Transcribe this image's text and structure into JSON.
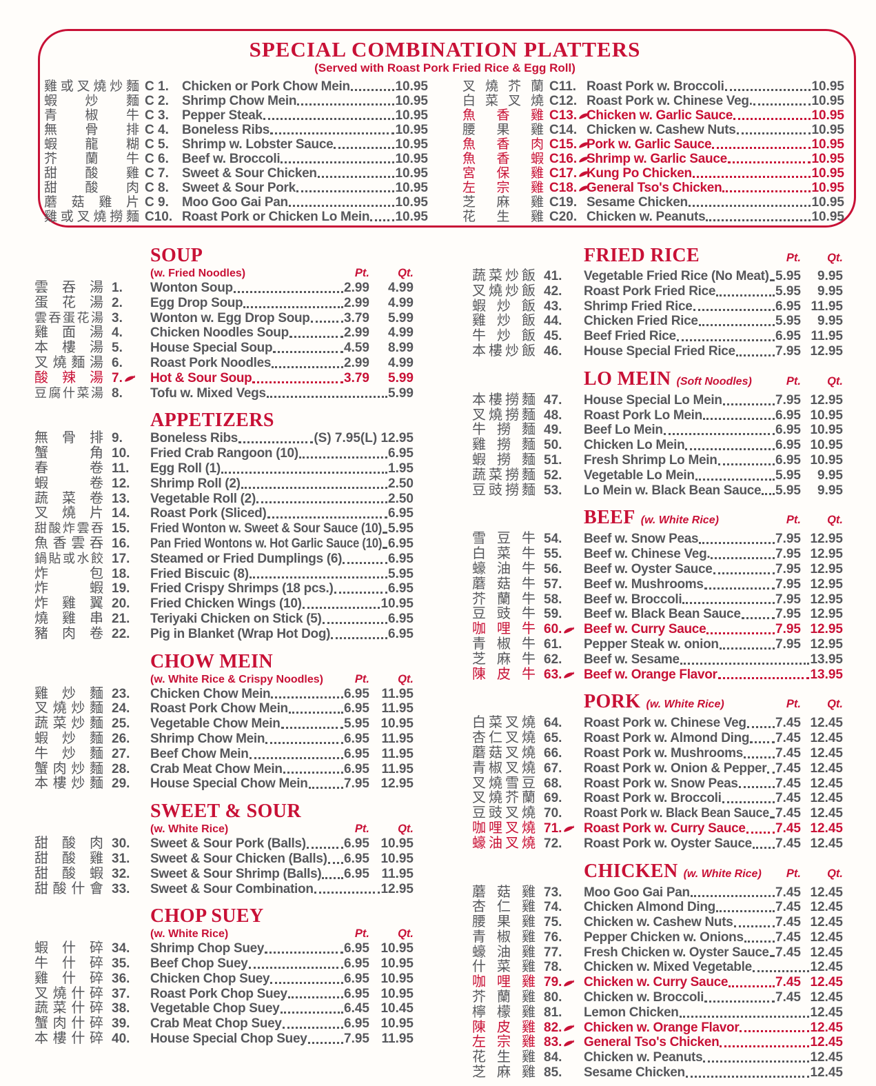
{
  "colors": {
    "accent": "#c81136",
    "text": "#56575b",
    "background": "#fffdfa"
  },
  "price_headers": {
    "pt": "Pt.",
    "qt": "Qt."
  },
  "platters": {
    "title": "SPECIAL COMBINATION PLATTERS",
    "subtitle": "(Served with Roast Pork Fried Rice & Egg Roll)",
    "left": [
      {
        "zh": "雞或叉燒炒麵",
        "num": "C 1.",
        "name": "Chicken or Pork Chow Mein",
        "qt": "10.95"
      },
      {
        "zh": "蝦炒麵",
        "num": "C 2.",
        "name": "Shrimp Chow Mein",
        "qt": "10.95"
      },
      {
        "zh": "青椒牛",
        "num": "C 3.",
        "name": "Pepper Steak",
        "qt": "10.95"
      },
      {
        "zh": "無骨排",
        "num": "C 4.",
        "name": "Boneless Ribs",
        "qt": "10.95"
      },
      {
        "zh": "蝦龍糊",
        "num": "C 5.",
        "name": "Shrimp w. Lobster Sauce",
        "qt": "10.95"
      },
      {
        "zh": "芥蘭牛",
        "num": "C 6.",
        "name": "Beef w. Broccoli",
        "qt": "10.95"
      },
      {
        "zh": "甜酸雞",
        "num": "C 7.",
        "name": "Sweet & Sour Chicken",
        "qt": "10.95"
      },
      {
        "zh": "甜酸肉",
        "num": "C 8.",
        "name": "Sweet & Sour Pork",
        "qt": "10.95"
      },
      {
        "zh": "蘑菇雞片",
        "num": "C 9.",
        "name": "Moo Goo Gai Pan",
        "qt": "10.95"
      },
      {
        "zh": "雞或叉燒撈麵",
        "num": "C10.",
        "name": "Roast Pork or Chicken Lo Mein",
        "qt": "10.95"
      }
    ],
    "right": [
      {
        "zh": "叉燒芥蘭",
        "num": "C11.",
        "name": "Roast Pork w. Broccoli",
        "qt": "10.95"
      },
      {
        "zh": "白菜叉燒",
        "num": "C12.",
        "name": "Roast Pork w. Chinese Veg.",
        "qt": "10.95"
      },
      {
        "zh": "魚香雞",
        "num": "C13.",
        "name": "Chicken w. Garlic Sauce",
        "qt": "10.95",
        "red": true,
        "spicy": true
      },
      {
        "zh": "腰果雞",
        "num": "C14.",
        "name": "Chicken w. Cashew Nuts",
        "qt": "10.95"
      },
      {
        "zh": "魚香肉",
        "num": "C15.",
        "name": "Pork w. Garlic Sauce",
        "qt": "10.95",
        "red": true,
        "spicy": true
      },
      {
        "zh": "魚香蝦",
        "num": "C16.",
        "name": "Shrimp w. Garlic Sauce",
        "qt": "10.95",
        "red": true,
        "spicy": true
      },
      {
        "zh": "宮保雞",
        "num": "C17.",
        "name": "Kung Po Chicken",
        "qt": "10.95",
        "red": true,
        "spicy": true
      },
      {
        "zh": "左宗雞",
        "num": "C18.",
        "name": "General Tso's Chicken",
        "qt": "10.95",
        "red": true,
        "spicy": true
      },
      {
        "zh": "芝麻雞",
        "num": "C19.",
        "name": "Sesame Chicken",
        "qt": "10.95"
      },
      {
        "zh": "花生雞",
        "num": "C20.",
        "name": "Chicken w. Peanuts",
        "qt": "10.95"
      }
    ]
  },
  "left_sections": [
    {
      "title": "SOUP",
      "subtitle": "(w. Fried Noodles)",
      "show_ptqt": true,
      "items": [
        {
          "zh": "雲吞湯",
          "num": "1.",
          "name": "Wonton Soup",
          "pt": "2.99",
          "qt": "4.99"
        },
        {
          "zh": "蛋花湯",
          "num": "2.",
          "name": "Egg Drop Soup",
          "pt": "2.99",
          "qt": "4.99"
        },
        {
          "zh": "雲吞蛋花湯",
          "num": "3.",
          "name": "Wonton w. Egg Drop Soup",
          "pt": "3.79",
          "qt": "5.99"
        },
        {
          "zh": "雞面湯",
          "num": "4.",
          "name": "Chicken Noodles Soup",
          "pt": "2.99",
          "qt": "4.99"
        },
        {
          "zh": "本樓湯",
          "num": "5.",
          "name": "House Special Soup",
          "pt": "4.59",
          "qt": "8.99"
        },
        {
          "zh": "叉燒麵湯",
          "num": "6.",
          "name": "Roast Pork Noodles",
          "pt": "2.99",
          "qt": "4.99"
        },
        {
          "zh": "酸辣湯",
          "num": "7.",
          "name": "Hot & Sour Soup",
          "pt": "3.79",
          "qt": "5.99",
          "red": true,
          "spicy": true
        },
        {
          "zh": "豆腐什菜湯",
          "num": "8.",
          "name": "Tofu w. Mixed Vegs",
          "qt": "5.99"
        }
      ]
    },
    {
      "title": "APPETIZERS",
      "items": [
        {
          "zh": "無骨排",
          "num": "9.",
          "name": "Boneless Ribs",
          "pt": "(S) 7.95",
          "qt": "(L) 12.95"
        },
        {
          "zh": "蟹角",
          "num": "10.",
          "name": "Fried Crab Rangoon (10)",
          "qt": "6.95"
        },
        {
          "zh": "春卷",
          "num": "11.",
          "name": "Egg Roll (1)",
          "qt": "1.95"
        },
        {
          "zh": "蝦卷",
          "num": "12.",
          "name": "Shrimp Roll (2)",
          "qt": "2.50"
        },
        {
          "zh": "蔬菜卷",
          "num": "13.",
          "name": "Vegetable Roll (2)",
          "qt": "2.50"
        },
        {
          "zh": "叉燒片",
          "num": "14.",
          "name": "Roast Pork (Sliced)",
          "qt": "6.95"
        },
        {
          "zh": "甜酸炸雲吞",
          "num": "15.",
          "name": "Fried Wonton w. Sweet & Sour Sauce (10)",
          "qt": "5.95"
        },
        {
          "zh": "魚香雲吞",
          "num": "16.",
          "name": "Pan Fried Wontons w. Hot Garlic Sauce (10)",
          "qt": "6.95"
        },
        {
          "zh": "鍋貼或水餃",
          "num": "17.",
          "name": "Steamed or Fried Dumplings (6)",
          "qt": "6.95"
        },
        {
          "zh": "炸包",
          "num": "18.",
          "name": "Fried Biscuic (8)",
          "qt": "5.95"
        },
        {
          "zh": "炸蝦",
          "num": "19.",
          "name": "Fried Crispy Shrimps (18 pcs.)",
          "qt": "6.95"
        },
        {
          "zh": "炸雞翼",
          "num": "20.",
          "name": "Fried Chicken Wings (10)",
          "qt": "10.95"
        },
        {
          "zh": "燒雞串",
          "num": "21.",
          "name": "Teriyaki Chicken on Stick (5)",
          "qt": "6.95"
        },
        {
          "zh": "豬肉卷",
          "num": "22.",
          "name": "Pig in Blanket (Wrap Hot Dog)",
          "qt": "6.95"
        }
      ]
    },
    {
      "title": "CHOW MEIN",
      "subtitle": "(w. White Rice & Crispy Noodles)",
      "show_ptqt": true,
      "items": [
        {
          "zh": "雞炒麵",
          "num": "23.",
          "name": "Chicken Chow Mein",
          "pt": "6.95",
          "qt": "11.95"
        },
        {
          "zh": "叉燒炒麵",
          "num": "24.",
          "name": "Roast Pork Chow Mein",
          "pt": "6.95",
          "qt": "11.95"
        },
        {
          "zh": "蔬菜炒麵",
          "num": "25.",
          "name": "Vegetable Chow Mein",
          "pt": "5.95",
          "qt": "10.95"
        },
        {
          "zh": "蝦炒麵",
          "num": "26.",
          "name": "Shrimp Chow Mein",
          "pt": "6.95",
          "qt": "11.95"
        },
        {
          "zh": "牛炒麵",
          "num": "27.",
          "name": "Beef Chow Mein",
          "pt": "6.95",
          "qt": "11.95"
        },
        {
          "zh": "蟹肉炒麵",
          "num": "28.",
          "name": "Crab Meat Chow Mein",
          "pt": "6.95",
          "qt": "11.95"
        },
        {
          "zh": "本樓炒麵",
          "num": "29.",
          "name": "House Special Chow Mein",
          "pt": "7.95",
          "qt": "12.95"
        }
      ]
    },
    {
      "title": "SWEET & SOUR",
      "subtitle": "(w. White Rice)",
      "show_ptqt": true,
      "items": [
        {
          "zh": "甜酸肉",
          "num": "30.",
          "name": "Sweet & Sour Pork (Balls)",
          "pt": "6.95",
          "qt": "10.95"
        },
        {
          "zh": "甜酸雞",
          "num": "31.",
          "name": "Sweet & Sour Chicken (Balls)",
          "pt": "6.95",
          "qt": "10.95"
        },
        {
          "zh": "甜酸蝦",
          "num": "32.",
          "name": "Sweet & Sour Shrimp (Balls)",
          "pt": "6.95",
          "qt": "11.95"
        },
        {
          "zh": "甜酸什會",
          "num": "33.",
          "name": "Sweet & Sour Combination",
          "qt": "12.95"
        }
      ]
    },
    {
      "title": "CHOP SUEY",
      "subtitle": "(w. White Rice)",
      "show_ptqt": true,
      "items": [
        {
          "zh": "蝦什碎",
          "num": "34.",
          "name": "Shrimp Chop Suey",
          "pt": "6.95",
          "qt": "10.95"
        },
        {
          "zh": "牛什碎",
          "num": "35.",
          "name": "Beef Chop Suey",
          "pt": "6.95",
          "qt": "10.95"
        },
        {
          "zh": "雞什碎",
          "num": "36.",
          "name": "Chicken Chop Suey",
          "pt": "6.95",
          "qt": "10.95"
        },
        {
          "zh": "叉燒什碎",
          "num": "37.",
          "name": "Roast Pork Chop Suey",
          "pt": "6.95",
          "qt": "10.95"
        },
        {
          "zh": "蔬菜什碎",
          "num": "38.",
          "name": "Vegetable Chop Suey",
          "pt": "6.45",
          "qt": "10.45"
        },
        {
          "zh": "蟹肉什碎",
          "num": "39.",
          "name": "Crab Meat Chop Suey",
          "pt": "6.95",
          "qt": "10.95"
        },
        {
          "zh": "本樓什碎",
          "num": "40.",
          "name": "House Special Chop Suey",
          "pt": "7.95",
          "qt": "11.95"
        }
      ]
    }
  ],
  "right_sections": [
    {
      "title": "FRIED RICE",
      "subtitle": "",
      "show_ptqt": true,
      "items": [
        {
          "zh": "蔬菜炒飯",
          "num": "41.",
          "name": "Vegetable Fried Rice (No Meat)",
          "pt": "5.95",
          "qt": "9.95"
        },
        {
          "zh": "叉燒炒飯",
          "num": "42.",
          "name": "Roast Pork Fried Rice",
          "pt": "5.95",
          "qt": "9.95"
        },
        {
          "zh": "蝦炒飯",
          "num": "43.",
          "name": "Shrimp Fried Rice",
          "pt": "6.95",
          "qt": "11.95"
        },
        {
          "zh": "雞炒飯",
          "num": "44.",
          "name": "Chicken Fried Rice",
          "pt": "5.95",
          "qt": "9.95"
        },
        {
          "zh": "牛炒飯",
          "num": "45.",
          "name": "Beef Fried Rice",
          "pt": "6.95",
          "qt": "11.95"
        },
        {
          "zh": "本樓炒飯",
          "num": "46.",
          "name": "House Special Fried Rice",
          "pt": "7.95",
          "qt": "12.95"
        }
      ]
    },
    {
      "title": "LO MEIN",
      "subtitle": "(Soft Noodles)",
      "show_ptqt": true,
      "items": [
        {
          "zh": "本樓撈麵",
          "num": "47.",
          "name": "House Special Lo Mein",
          "pt": "7.95",
          "qt": "12.95"
        },
        {
          "zh": "叉燒撈麵",
          "num": "48.",
          "name": "Roast Pork Lo Mein",
          "pt": "6.95",
          "qt": "10.95"
        },
        {
          "zh": "牛撈麵",
          "num": "49.",
          "name": "Beef Lo Mein",
          "pt": "6.95",
          "qt": "10.95"
        },
        {
          "zh": "雞撈麵",
          "num": "50.",
          "name": "Chicken Lo Mein",
          "pt": "6.95",
          "qt": "10.95"
        },
        {
          "zh": "蝦撈麵",
          "num": "51.",
          "name": "Fresh Shrimp Lo Mein",
          "pt": "6.95",
          "qt": "10.95"
        },
        {
          "zh": "蔬菜撈麵",
          "num": "52.",
          "name": "Vegetable Lo Mein",
          "pt": "5.95",
          "qt": "9.95"
        },
        {
          "zh": "豆豉撈麵",
          "num": "53.",
          "name": "Lo Mein w. Black Bean Sauce",
          "pt": "5.95",
          "qt": "9.95"
        }
      ]
    },
    {
      "title": "BEEF",
      "subtitle": "(w. White Rice)",
      "show_ptqt": true,
      "items": [
        {
          "zh": "雪豆牛",
          "num": "54.",
          "name": "Beef w. Snow Peas",
          "pt": "7.95",
          "qt": "12.95"
        },
        {
          "zh": "白菜牛",
          "num": "55.",
          "name": "Beef w. Chinese Veg.",
          "pt": "7.95",
          "qt": "12.95"
        },
        {
          "zh": "蠔油牛",
          "num": "56.",
          "name": "Beef w. Oyster Sauce",
          "pt": "7.95",
          "qt": "12.95"
        },
        {
          "zh": "蘑菇牛",
          "num": "57.",
          "name": "Beef w. Mushrooms",
          "pt": "7.95",
          "qt": "12.95"
        },
        {
          "zh": "芥蘭牛",
          "num": "58.",
          "name": "Beef w. Broccoli",
          "pt": "7.95",
          "qt": "12.95"
        },
        {
          "zh": "豆豉牛",
          "num": "59.",
          "name": "Beef w. Black Bean Sauce",
          "pt": "7.95",
          "qt": "12.95"
        },
        {
          "zh": "咖哩牛",
          "num": "60.",
          "name": "Beef w. Curry Sauce",
          "pt": "7.95",
          "qt": "12.95",
          "red": true,
          "spicy": true
        },
        {
          "zh": "青椒牛",
          "num": "61.",
          "name": "Pepper Steak w. onion",
          "pt": "7.95",
          "qt": "12.95"
        },
        {
          "zh": "芝麻牛",
          "num": "62.",
          "name": "Beef w. Sesame",
          "qt": "13.95"
        },
        {
          "zh": "陳皮牛",
          "num": "63.",
          "name": "Beef w. Orange Flavor",
          "qt": "13.95",
          "red": true,
          "spicy": true
        }
      ]
    },
    {
      "title": "PORK",
      "subtitle": "(w. White Rice)",
      "show_ptqt": true,
      "items": [
        {
          "zh": "白菜叉燒",
          "num": "64.",
          "name": "Roast Pork w. Chinese Veg",
          "pt": "7.45",
          "qt": "12.45"
        },
        {
          "zh": "杏仁叉燒",
          "num": "65.",
          "name": "Roast Pork w. Almond Ding",
          "pt": "7.45",
          "qt": "12.45"
        },
        {
          "zh": "蘑菇叉燒",
          "num": "66.",
          "name": "Roast Pork w. Mushrooms",
          "pt": "7.45",
          "qt": "12.45"
        },
        {
          "zh": "青椒叉燒",
          "num": "67.",
          "name": "Roast Pork w. Onion & Pepper",
          "pt": "7.45",
          "qt": "12.45"
        },
        {
          "zh": "叉燒雪豆",
          "num": "68.",
          "name": "Roast Pork w. Snow Peas",
          "pt": "7.45",
          "qt": "12.45"
        },
        {
          "zh": "叉燒芥蘭",
          "num": "69.",
          "name": "Roast Pork w. Broccoli",
          "pt": "7.45",
          "qt": "12.45"
        },
        {
          "zh": "豆豉叉燒",
          "num": "70.",
          "name": "Roast Pork w. Black Bean Sauce",
          "pt": "7.45",
          "qt": "12.45"
        },
        {
          "zh": "咖哩叉燒",
          "num": "71.",
          "name": "Roast Pork w. Curry Sauce",
          "pt": "7.45",
          "qt": "12.45",
          "red": true,
          "spicy": true
        },
        {
          "zh": "蠔油叉燒",
          "num": "72.",
          "name": "Roast Pork w. Oyster Sauce",
          "pt": "7.45",
          "qt": "12.45",
          "zh_red": true
        }
      ]
    },
    {
      "title": "CHICKEN",
      "subtitle": "(w. White Rice)",
      "show_ptqt": true,
      "items": [
        {
          "zh": "蘑菇雞",
          "num": "73.",
          "name": "Moo Goo Gai Pan",
          "pt": "7.45",
          "qt": "12.45"
        },
        {
          "zh": "杏仁雞",
          "num": "74.",
          "name": "Chicken Almond Ding",
          "pt": "7.45",
          "qt": "12.45"
        },
        {
          "zh": "腰果雞",
          "num": "75.",
          "name": "Chicken w. Cashew Nuts",
          "pt": "7.45",
          "qt": "12.45"
        },
        {
          "zh": "青椒雞",
          "num": "76.",
          "name": "Pepper Chicken w. Onions",
          "pt": "7.45",
          "qt": "12.45"
        },
        {
          "zh": "蠔油雞",
          "num": "77.",
          "name": "Fresh Chicken w. Oyster Sauce",
          "pt": "7.45",
          "qt": "12.45"
        },
        {
          "zh": "什菜雞",
          "num": "78.",
          "name": "Chicken w. Mixed Vegetable",
          "qt": "12.45"
        },
        {
          "zh": "咖哩雞",
          "num": "79.",
          "name": "Chicken w. Curry Sauce",
          "pt": "7.45",
          "qt": "12.45",
          "red": true,
          "spicy": true
        },
        {
          "zh": "芥蘭雞",
          "num": "80.",
          "name": "Chicken w. Broccoli",
          "pt": "7.45",
          "qt": "12.45"
        },
        {
          "zh": "檸檬雞",
          "num": "81.",
          "name": "Lemon Chicken",
          "qt": "12.45"
        },
        {
          "zh": "陳皮雞",
          "num": "82.",
          "name": "Chicken w. Orange Flavor",
          "qt": "12.45",
          "red": true,
          "spicy": true
        },
        {
          "zh": "左宗雞",
          "num": "83.",
          "name": "General Tso's Chicken",
          "qt": "12.45",
          "red": true,
          "spicy": true
        },
        {
          "zh": "花生雞",
          "num": "84.",
          "name": "Chicken w. Peanuts",
          "qt": "12.45"
        },
        {
          "zh": "芝麻雞",
          "num": "85.",
          "name": "Sesame Chicken",
          "qt": "12.45"
        }
      ]
    }
  ]
}
